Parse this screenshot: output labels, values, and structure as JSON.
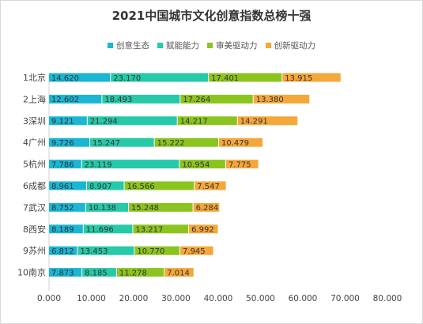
{
  "chart_data": {
    "type": "bar",
    "orientation": "horizontal",
    "stacked": true,
    "title": "2021中国城市文化创意指数总榜十强",
    "categories": [
      "1北京",
      "2上海",
      "3深圳",
      "4广州",
      "5杭州",
      "6成都",
      "7武汉",
      "8西安",
      "9苏州",
      "10南京"
    ],
    "series": [
      {
        "name": "创意生态",
        "color": "#1ab6d4",
        "values": [
          14.62,
          12.602,
          9.121,
          9.726,
          7.786,
          8.961,
          8.752,
          8.189,
          6.812,
          7.873
        ]
      },
      {
        "name": "赋能能力",
        "color": "#26c9a8",
        "values": [
          23.17,
          18.493,
          21.294,
          15.247,
          23.119,
          8.907,
          10.138,
          11.696,
          13.453,
          8.185
        ]
      },
      {
        "name": "审美驱动力",
        "color": "#8cc41f",
        "values": [
          17.401,
          17.264,
          14.217,
          15.222,
          10.954,
          16.566,
          15.248,
          13.217,
          10.77,
          11.278
        ]
      },
      {
        "name": "创新驱动力",
        "color": "#f5a73a",
        "values": [
          13.915,
          13.38,
          14.291,
          10.479,
          7.775,
          7.547,
          6.284,
          6.992,
          7.945,
          7.014
        ]
      }
    ],
    "value_labels": [
      [
        "14.620",
        "23.170",
        "17.401",
        "13.915"
      ],
      [
        "12.602",
        "18.493",
        "17.264",
        "13.380"
      ],
      [
        "9.121",
        "21.294",
        "14.217",
        "14.291"
      ],
      [
        "9.726",
        "15.247",
        "15.222",
        "10.479"
      ],
      [
        "7.786",
        "23.119",
        "10.954",
        "7.775"
      ],
      [
        "8.961",
        "8.907",
        "16.566",
        "7.547"
      ],
      [
        "8.752",
        "10.138",
        "15.248",
        "6.284"
      ],
      [
        "8.189",
        "11.696",
        "13.217",
        "6.992"
      ],
      [
        "6.812",
        "13.453",
        "10.770",
        "7.945"
      ],
      [
        "7.873",
        "8.185",
        "11.278",
        "7.014"
      ]
    ],
    "xlim": [
      0,
      80
    ],
    "xticks": [
      "0.000",
      "10.000",
      "20.000",
      "30.000",
      "40.000",
      "50.000",
      "60.000",
      "70.000",
      "80.000"
    ],
    "grid": false,
    "legend_position": "top-center"
  }
}
